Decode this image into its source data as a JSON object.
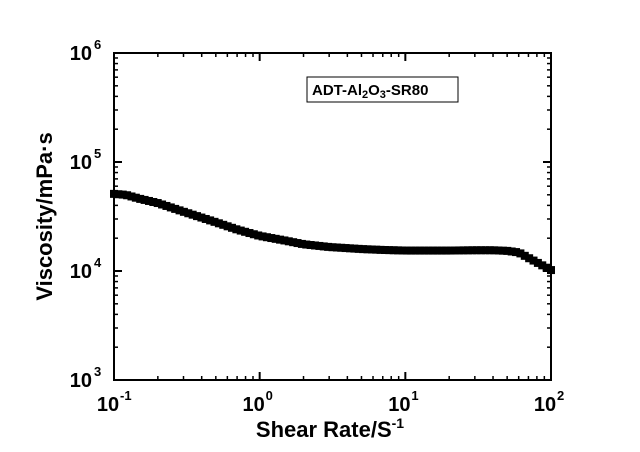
{
  "chart_data": {
    "type": "scatter",
    "title": "",
    "xlabel": "Shear Rate/S",
    "xlabel_superscript": "-1",
    "ylabel": "Viscosity/mPa·s",
    "x_scale": "log",
    "y_scale": "log",
    "xlim": [
      0.1,
      100
    ],
    "ylim": [
      1000,
      1000000
    ],
    "x_ticks": [
      {
        "value": 0.1,
        "base": "10",
        "exp": "-1"
      },
      {
        "value": 1,
        "base": "10",
        "exp": "0"
      },
      {
        "value": 10,
        "base": "10",
        "exp": "1"
      },
      {
        "value": 100,
        "base": "10",
        "exp": "2"
      }
    ],
    "y_ticks": [
      {
        "value": 1000,
        "base": "10",
        "exp": "3"
      },
      {
        "value": 10000,
        "base": "10",
        "exp": "4"
      },
      {
        "value": 100000,
        "base": "10",
        "exp": "5"
      },
      {
        "value": 1000000,
        "base": "10",
        "exp": "6"
      }
    ],
    "grid": false,
    "legend": {
      "position": "top-right",
      "parts": [
        {
          "text": "ADT-Al",
          "shift": "none"
        },
        {
          "text": "2",
          "shift": "sub"
        },
        {
          "text": "O",
          "shift": "none"
        },
        {
          "text": "3",
          "shift": "sub"
        },
        {
          "text": "-SR80",
          "shift": "none"
        }
      ]
    },
    "marker": "square",
    "color": "#000000",
    "series": [
      {
        "x": [
          0.1,
          0.12,
          0.15,
          0.2,
          0.3,
          0.5,
          0.7,
          1,
          1.5,
          2,
          3,
          5,
          7,
          10,
          15,
          20,
          30,
          40,
          50,
          60,
          70,
          80,
          90,
          100
        ],
        "y": [
          51000,
          50000,
          46000,
          42000,
          35000,
          28000,
          24000,
          21000,
          19000,
          17600,
          16600,
          15900,
          15600,
          15400,
          15400,
          15400,
          15500,
          15500,
          15300,
          14800,
          13200,
          12000,
          11000,
          10200
        ]
      }
    ]
  }
}
